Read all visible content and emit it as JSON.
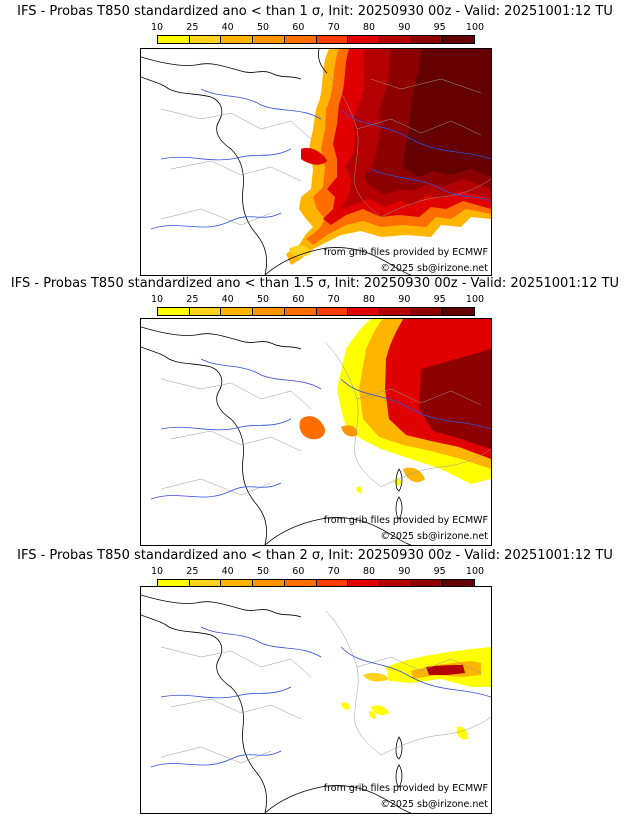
{
  "legend": {
    "ticks": [
      "10",
      "25",
      "40",
      "50",
      "60",
      "70",
      "80",
      "90",
      "95",
      "100"
    ],
    "colors": [
      "#ffff00",
      "#ffd21e",
      "#ffb400",
      "#ff9600",
      "#ff6e00",
      "#ff3c00",
      "#e10000",
      "#b40000",
      "#8c0000",
      "#640000"
    ]
  },
  "panels": [
    {
      "title": "IFS - Probas T850  standardized ano < than 1 σ, Init: 20250930 00z - Valid: 20251001:12 TU",
      "credit": "from grib files provided by ECMWF",
      "copyright": "©2025 sb@irizone.net"
    },
    {
      "title": "IFS - Probas T850  standardized ano < than 1.5 σ, Init: 20250930 00z - Valid: 20251001:12 TU",
      "credit": "from grib files provided by ECMWF",
      "copyright": "©2025 sb@irizone.net"
    },
    {
      "title": "IFS - Probas T850  standardized ano < than 2 σ, Init: 20250930 00z - Valid: 20251001:12 TU",
      "credit": "from grib files provided by ECMWF",
      "copyright": "©2025 sb@irizone.net"
    }
  ]
}
